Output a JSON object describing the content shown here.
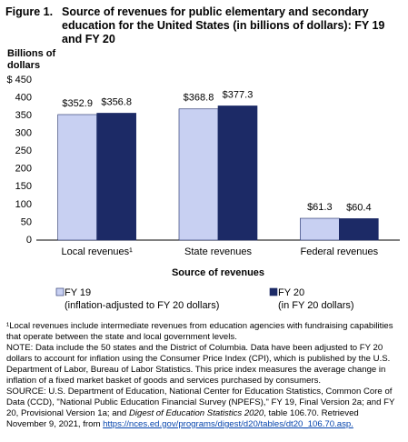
{
  "chart_data": {
    "type": "bar",
    "figure_label": "Figure 1.",
    "title": "Source of revenues for public elementary and secondary education for the United States (in billions of dollars): FY 19 and FY 20",
    "y_label": "Billions of dollars",
    "x_label": "Source of revenues",
    "categories": [
      "Local revenues¹",
      "State revenues",
      "Federal revenues"
    ],
    "series": [
      {
        "name": "FY 19",
        "note": "(inflation-adjusted to FY 20 dollars)",
        "color": "#c8d0f2",
        "values": [
          352.9,
          368.8,
          61.3
        ],
        "value_labels": [
          "$352.9",
          "$368.8",
          "$61.3"
        ]
      },
      {
        "name": "FY 20",
        "note": "(in FY 20 dollars)",
        "color": "#1c2a66",
        "values": [
          356.8,
          377.3,
          60.4
        ],
        "value_labels": [
          "$356.8",
          "$377.3",
          "$60.4"
        ]
      }
    ],
    "ylim": [
      0,
      450
    ],
    "yticks": [
      0,
      50,
      100,
      150,
      200,
      250,
      300,
      350,
      400,
      {
        "value": 450,
        "label": "$ 450"
      }
    ],
    "grid": false
  },
  "notes": {
    "footnote": "¹Local revenues include intermediate revenues from education agencies with fundraising capabilities that operate between the state and local government levels.",
    "note": "NOTE: Data include the 50 states and the District of Columbia. Data have been adjusted to FY 20 dollars to account for inflation using the Consumer Price Index (CPI), which is published by the U.S. Department of Labor, Bureau of Labor Statistics. This price index measures the average change in inflation of a fixed market basket of goods and services purchased by consumers.",
    "source": [
      "SOURCE: U.S. Department of Education, National Center for Education Statistics, Common Core of Data (CCD), \"National Public Education Financial Survey (NPEFS),\" FY 19, Final Version 2a; and FY 20, Provisional Version 1a; and ",
      "Digest of Education Statistics 2020",
      ", table 106.70. Retrieved November 9, 2021, from ",
      "https://nces.ed.gov/programs/digest/d20/tables/dt20_106.70.asp."
    ]
  }
}
